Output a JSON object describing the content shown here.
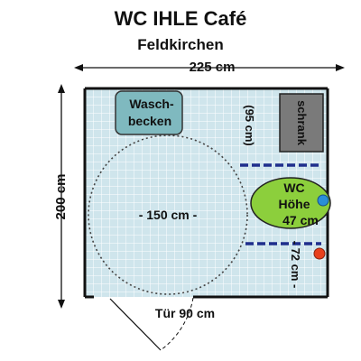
{
  "header": {
    "title": "WC IHLE Café",
    "subtitle": "Feldkirchen"
  },
  "dimensions": {
    "width": "225 cm",
    "height": "200 cm",
    "door": "Tür 90 cm",
    "turning_circle": "- 150 cm -",
    "cabinet_depth": "(95 cm)",
    "wc_height_gap": "- 72 cm -"
  },
  "fixtures": {
    "washbasin_line1": "Wasch-",
    "washbasin_line2": "becken",
    "cabinet": "schrank",
    "wc_line1": "WC",
    "wc_line2": "Höhe",
    "wc_line3": "47 cm"
  },
  "colors": {
    "floor": "#cfe5ec",
    "tile_grid": "#ffffff",
    "washbasin": "#7fb9bf",
    "cabinet": "#7a7a7a",
    "wc": "#8ccf3c",
    "grab_bar": "#1f2e8c",
    "flush_button_blue": "#2a8fd8",
    "flush_button_red": "#e8401c"
  }
}
